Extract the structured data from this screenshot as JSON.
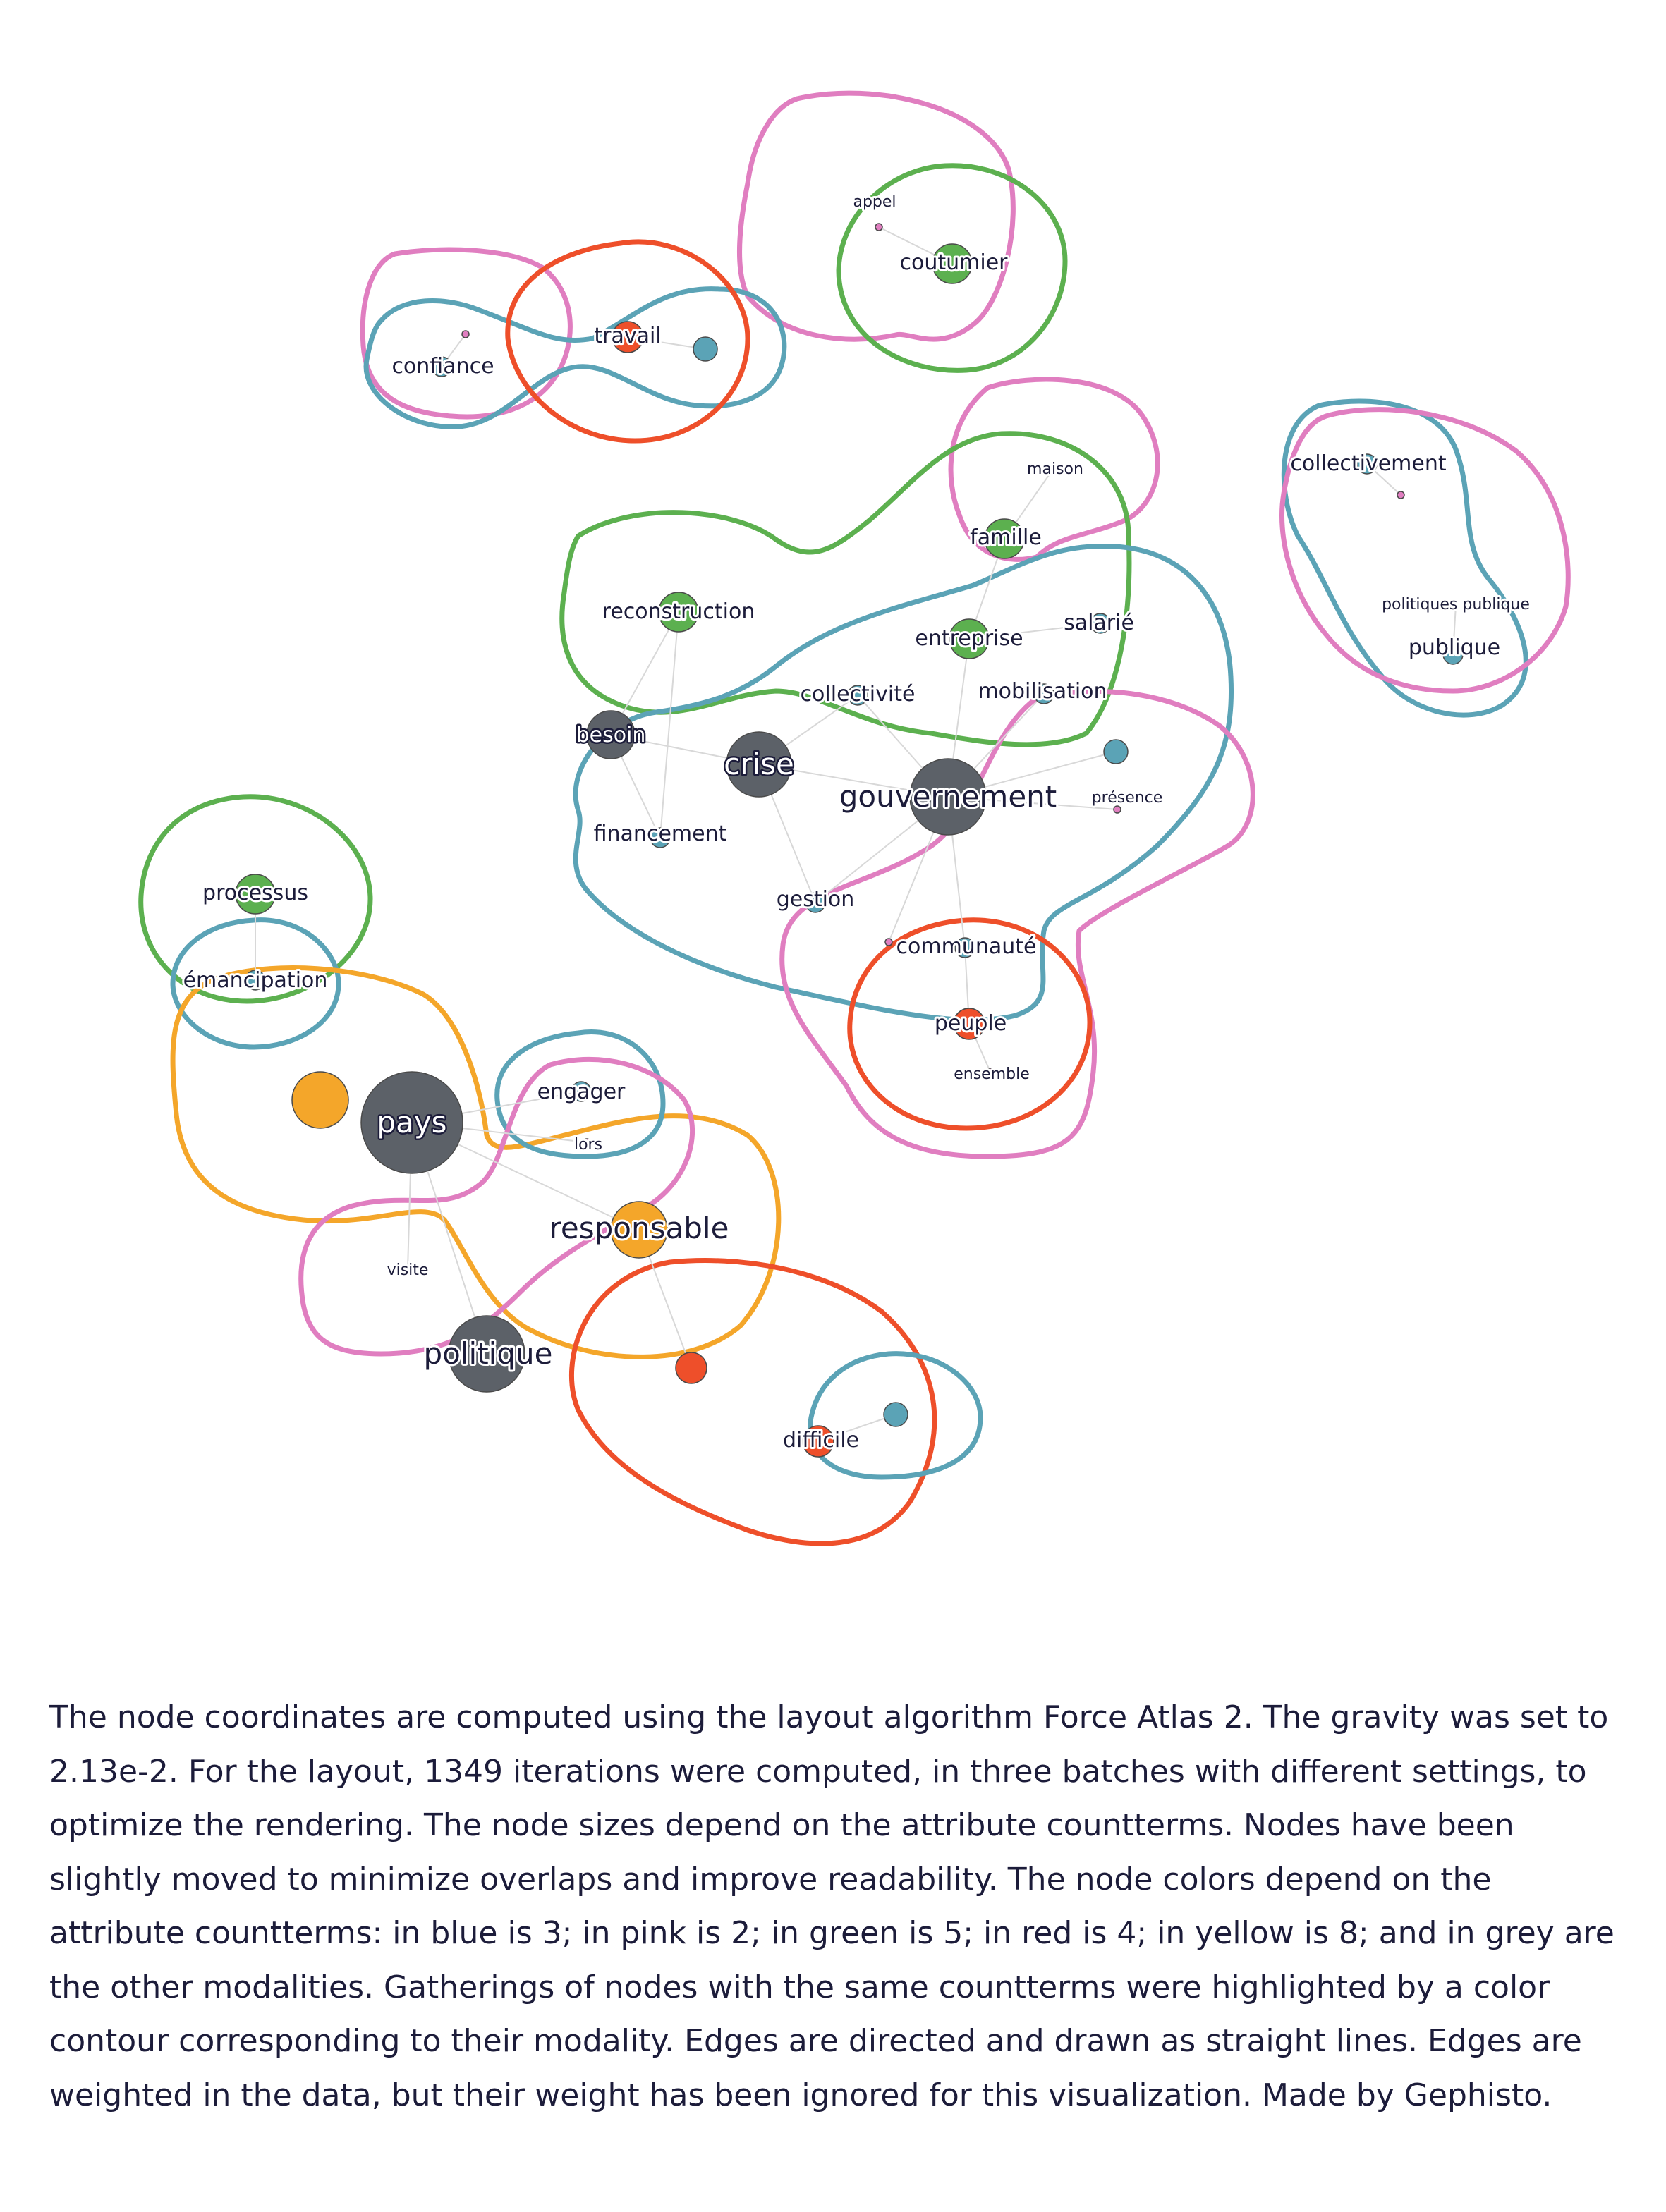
{
  "colors": {
    "blue": "#5ba3b6",
    "pink": "#e07ec0",
    "green": "#5cb04f",
    "red": "#ee4f2a",
    "yellow": "#f4a62a",
    "grey": "#5c6168"
  },
  "nodes": {
    "appel": "appel",
    "coutumier": "coutumier",
    "confiance": "confiance",
    "travail": "travail",
    "maison": "maison",
    "famille": "famille",
    "collectivement": "collectivement",
    "reconstruction": "reconstruction",
    "entreprise": "entreprise",
    "salarie": "salarié",
    "politiques_publique": "politiques publique",
    "publique": "publique",
    "collectivite": "collectivité",
    "mobilisation": "mobilisation",
    "besoin": "besoin",
    "crise": "crise",
    "gouvernement": "gouvernement",
    "presence": "présence",
    "financement": "financement",
    "processus": "processus",
    "gestion": "gestion",
    "communaute": "communauté",
    "emancipation": "émancipation",
    "peuple": "peuple",
    "ensemble": "ensemble",
    "engager": "engager",
    "pays": "pays",
    "lors": "lors",
    "responsable": "responsable",
    "visite": "visite",
    "politique": "politique",
    "difficile": "difficile"
  },
  "caption": "The node coordinates are computed using the layout algorithm Force Atlas 2. The gravity was set to 2.13e-2. For the layout, 1349 iterations were computed, in three batches with different settings, to optimize the rendering. The node sizes depend on the attribute countterms. Nodes have been slightly moved to minimize overlaps and improve readability. The node colors depend on the attribute countterms: in blue is 3; in pink is 2; in green is 5; in red is 4; in yellow is 8; and in grey are the other modalities. Gatherings of nodes with the same countterms were highlighted by a color contour corresponding to their modality. Edges are directed and drawn as straight lines. Edges are weighted in the data, but their weight has been ignored for this visualization.  Made by Gephisto."
}
